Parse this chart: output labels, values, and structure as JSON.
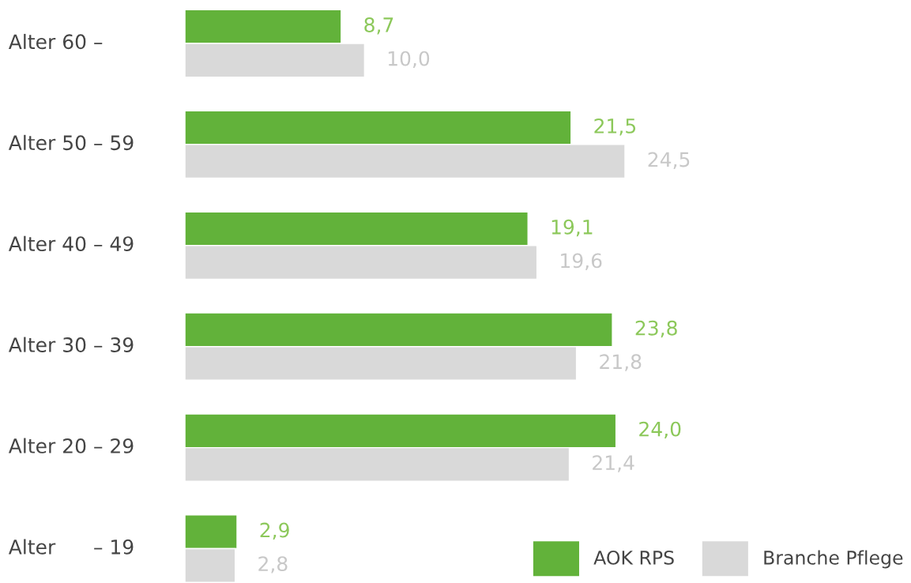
{
  "chart_data": {
    "type": "bar",
    "orientation": "horizontal",
    "categories": [
      "Alter 60 –",
      "Alter 50 – 59",
      "Alter 40 – 49",
      "Alter 30 – 39",
      "Alter 20 – 29",
      "Alter      – 19"
    ],
    "series": [
      {
        "name": "AOK RPS",
        "color": "#62b23a",
        "values": [
          8.7,
          21.5,
          19.1,
          23.8,
          24.0,
          2.9
        ],
        "value_labels": [
          "8,7",
          "21,5",
          "19,1",
          "23,8",
          "24,0",
          "2,9"
        ]
      },
      {
        "name": "Branche Pflege",
        "color": "#d9d9d9",
        "values": [
          10.0,
          24.5,
          19.6,
          21.8,
          21.4,
          2.8
        ],
        "value_labels": [
          "10,0",
          "24,5",
          "19,6",
          "21,8",
          "21,4",
          "2,8"
        ]
      }
    ],
    "legend": "bottom right",
    "grid": false
  }
}
